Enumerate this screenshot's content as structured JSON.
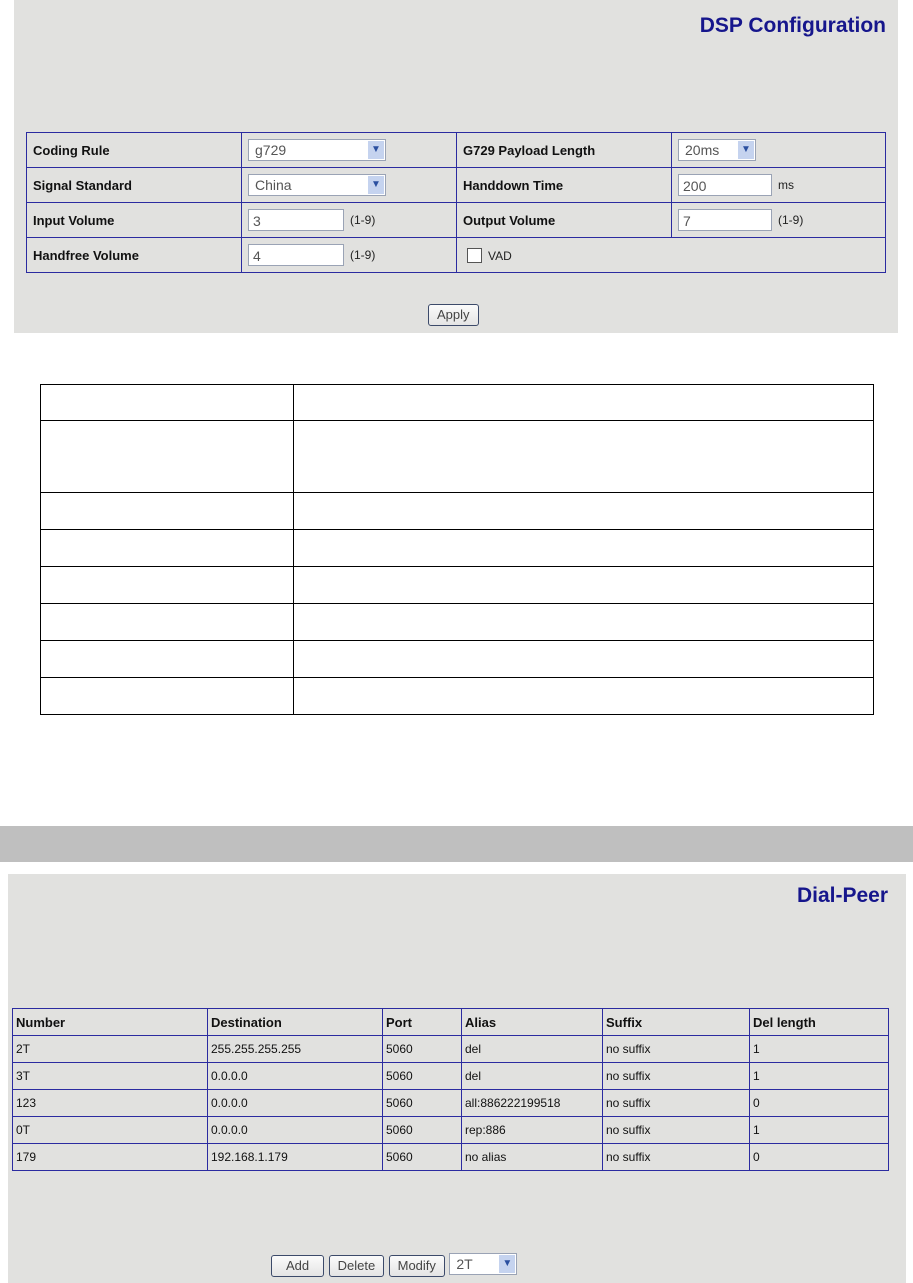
{
  "dsp": {
    "title": "DSP Configuration",
    "coding_rule": {
      "label": "Coding Rule",
      "value": "g729"
    },
    "payload": {
      "label": "G729 Payload Length",
      "value": "20ms"
    },
    "signal": {
      "label": "Signal Standard",
      "value": "China"
    },
    "handdown": {
      "label": "Handdown Time",
      "value": "200",
      "unit": "ms"
    },
    "input_volume": {
      "label": "Input Volume",
      "value": "3",
      "range": "(1-9)"
    },
    "output_volume": {
      "label": "Output Volume",
      "value": "7",
      "range": "(1-9)"
    },
    "handfree_volume": {
      "label": "Handfree Volume",
      "value": "4",
      "range": "(1-9)"
    },
    "vad": {
      "label": "VAD",
      "checked": false
    },
    "apply": "Apply"
  },
  "dialpeer": {
    "title": "Dial-Peer",
    "columns": [
      "Number",
      "Destination",
      "Port",
      "Alias",
      "Suffix",
      "Del length"
    ],
    "rows": [
      [
        "2T",
        "255.255.255.255",
        "5060",
        "del",
        "no suffix",
        "1"
      ],
      [
        "3T",
        "0.0.0.0",
        "5060",
        "del",
        "no suffix",
        "1"
      ],
      [
        "123",
        "0.0.0.0",
        "5060",
        "all:886222199518",
        "no suffix",
        "0"
      ],
      [
        "0T",
        "0.0.0.0",
        "5060",
        "rep:886",
        "no suffix",
        "1"
      ],
      [
        "179",
        "192.168.1.179",
        "5060",
        "no alias",
        "no suffix",
        "0"
      ]
    ],
    "add": "Add",
    "delete": "Delete",
    "modify": "Modify",
    "selected": "2T"
  }
}
